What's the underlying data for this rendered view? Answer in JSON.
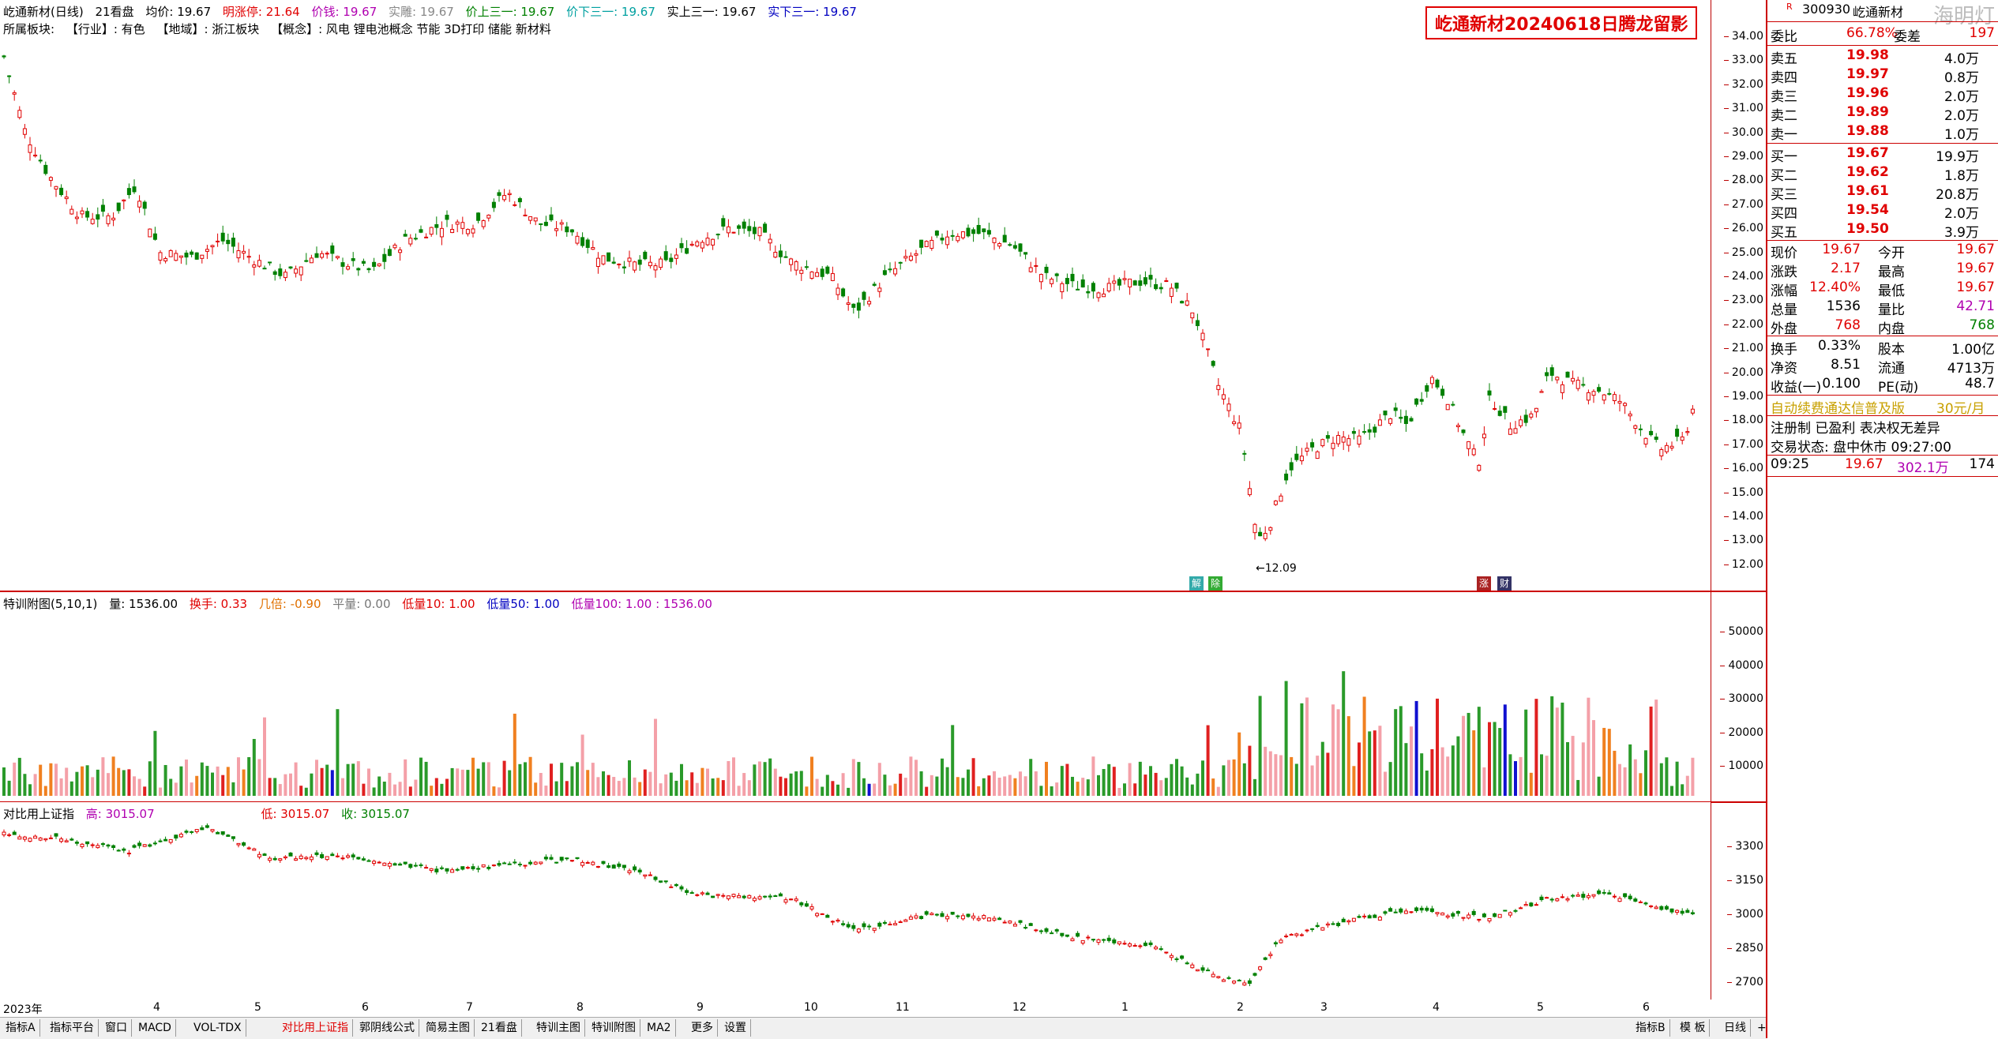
{
  "price_header": {
    "name": "屹通新材(日线)",
    "lookback": "21看盘",
    "avg": "均价: 19.67",
    "limit_up": "明涨停: 21.64",
    "price": "价钱: 19.67",
    "real": "实雕: 19.67",
    "up3": "价上三一: 19.67",
    "down3": "价下三一: 19.67",
    "realup3": "实上三一: 19.67",
    "realdown3": "实下三一: 19.67"
  },
  "concept_line": {
    "label": "所属板块:",
    "industry": "【行业】: 有色",
    "region": "【地域】: 浙江板块",
    "concept": "【概念】: 风电 锂电池概念 节能 3D打印 储能 新材料"
  },
  "title_box": "屹通新材20240618日腾龙留影",
  "low_marker": "12.09",
  "price_axis": [
    "34.00",
    "33.00",
    "32.00",
    "31.00",
    "30.00",
    "29.00",
    "28.00",
    "27.00",
    "26.00",
    "25.00",
    "24.00",
    "23.00",
    "22.00",
    "21.00",
    "20.00",
    "19.00",
    "18.00",
    "17.00",
    "16.00",
    "15.00",
    "14.00",
    "13.00",
    "12.00"
  ],
  "vol_header": {
    "name": "特训附图(5,10,1)",
    "vol": "量: 1536.00",
    "turnover": "换手: 0.33",
    "ratio": "几倍: -0.90",
    "flat": "平量: 0.00",
    "low10": "低量10: 1.00",
    "low50": "低量50: 1.00",
    "low100": "低量100: 1.00 : 1536.00"
  },
  "vol_axis": [
    "50000",
    "40000",
    "30000",
    "20000",
    "10000"
  ],
  "idx_header": {
    "name": "对比用上证指",
    "high": "高: 3015.07",
    "low": "低: 3015.07",
    "close": "收: 3015.07"
  },
  "idx_axis": [
    "3300",
    "3150",
    "3000",
    "2850",
    "2700"
  ],
  "time_axis": [
    "2023年",
    "4",
    "5",
    "6",
    "7",
    "8",
    "9",
    "10",
    "11",
    "12",
    "1",
    "2",
    "3",
    "4",
    "5",
    "6"
  ],
  "bottom_tabs": [
    "指标A",
    "指标平台",
    "窗口",
    "MACD",
    "VOL-TDX",
    "对比用上证指",
    "郭阴线公式",
    "简易主图",
    "21看盘",
    "特训主图",
    "特训附图",
    "MA2",
    "更多",
    "设置"
  ],
  "bottom_right_tabs": [
    "指标B",
    "模 板",
    "日线",
    "+",
    "-"
  ],
  "badges": [
    "解",
    "除",
    "涨",
    "财"
  ],
  "right_panel": {
    "code": "300930",
    "name": "屹通新材",
    "watermark": "海明灯",
    "weibi_label": "委比",
    "weibi": "66.78%",
    "weicha_label": "委差",
    "weicha": "197",
    "asks": [
      {
        "label": "卖五",
        "price": "19.98",
        "vol": "4.0万"
      },
      {
        "label": "卖四",
        "price": "19.97",
        "vol": "0.8万"
      },
      {
        "label": "卖三",
        "price": "19.96",
        "vol": "2.0万"
      },
      {
        "label": "卖二",
        "price": "19.89",
        "vol": "2.0万"
      },
      {
        "label": "卖一",
        "price": "19.88",
        "vol": "1.0万"
      }
    ],
    "bids": [
      {
        "label": "买一",
        "price": "19.67",
        "vol": "19.9万"
      },
      {
        "label": "买二",
        "price": "19.62",
        "vol": "1.8万"
      },
      {
        "label": "买三",
        "price": "19.61",
        "vol": "20.8万"
      },
      {
        "label": "买四",
        "price": "19.54",
        "vol": "2.0万"
      },
      {
        "label": "买五",
        "price": "19.50",
        "vol": "3.9万"
      }
    ],
    "stats": [
      {
        "l1": "现价",
        "v1": "19.67",
        "l2": "今开",
        "v2": "19.67"
      },
      {
        "l1": "涨跌",
        "v1": "2.17",
        "l2": "最高",
        "v2": "19.67"
      },
      {
        "l1": "涨幅",
        "v1": "12.40%",
        "l2": "最低",
        "v2": "19.67"
      },
      {
        "l1": "总量",
        "v1": "1536",
        "l2": "量比",
        "v2": "42.71"
      },
      {
        "l1": "外盘",
        "v1": "768",
        "l2": "内盘",
        "v2": "768"
      }
    ],
    "stats2": [
      {
        "l1": "换手",
        "v1": "0.33%",
        "l2": "股本",
        "v2": "1.00亿"
      },
      {
        "l1": "净资",
        "v1": "8.51",
        "l2": "流通",
        "v2": "4713万"
      },
      {
        "l1": "收益(一)",
        "v1": "0.100",
        "l2": "PE(动)",
        "v2": "48.7"
      }
    ],
    "promo": "自动续费通达信普及版",
    "promo_price": "30元/月",
    "reg": "注册制 已盈利 表决权无差异",
    "trade_state": "交易状态: 盘中休市 09:27:00",
    "tick_time": "09:25",
    "tick_price": "19.67",
    "tick_amount": "302.1万",
    "tick_vol": "174"
  },
  "colors": {
    "up": "#e00000",
    "down": "#008000",
    "sep": "#cc0000",
    "orange": "#f08020",
    "blue": "#1010d0",
    "magenta": "#d000d0",
    "pink": "#ff9aa0"
  }
}
